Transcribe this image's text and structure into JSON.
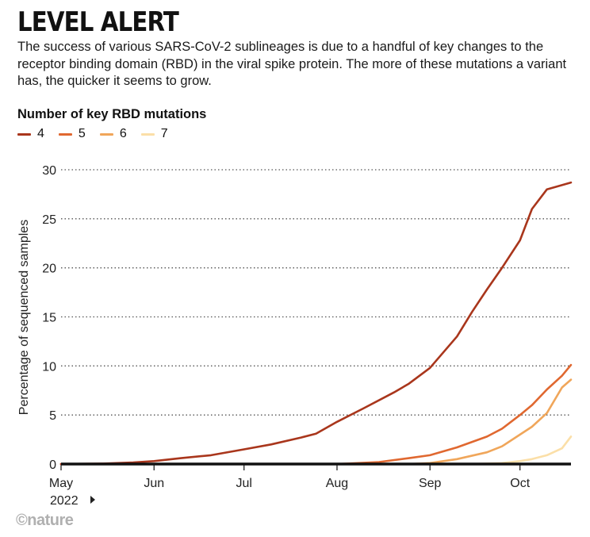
{
  "title": "LEVEL ALERT",
  "subtitle": "The success of various SARS-CoV-2 sublineages is due to a handful of key changes to the receptor binding domain (RBD) in the viral spike protein. The more of these mutations a variant has, the quicker it seems to grow.",
  "legend_title": "Number of key RBD mutations",
  "credit": "©nature",
  "year_label": "2022",
  "chart_data": {
    "type": "line",
    "ylabel": "Percentage of sequenced samples",
    "xlabel": "",
    "x_ticks": [
      "May",
      "Jun",
      "Jul",
      "Aug",
      "Sep",
      "Oct"
    ],
    "x_range": [
      "2022-05-01",
      "2022-10-18"
    ],
    "ylim": [
      0,
      30
    ],
    "y_ticks": [
      0,
      5,
      10,
      15,
      20,
      25,
      30
    ],
    "grid": "horizontal-dotted",
    "legend_position": "top-left",
    "series": [
      {
        "name": "4",
        "color": "#a9361c",
        "points": [
          [
            "2022-05-01",
            0
          ],
          [
            "2022-05-15",
            0.05
          ],
          [
            "2022-05-25",
            0.15
          ],
          [
            "2022-06-01",
            0.3
          ],
          [
            "2022-06-10",
            0.6
          ],
          [
            "2022-06-20",
            0.9
          ],
          [
            "2022-07-01",
            1.5
          ],
          [
            "2022-07-10",
            2.0
          ],
          [
            "2022-07-20",
            2.7
          ],
          [
            "2022-07-25",
            3.1
          ],
          [
            "2022-08-01",
            4.3
          ],
          [
            "2022-08-10",
            5.7
          ],
          [
            "2022-08-20",
            7.3
          ],
          [
            "2022-08-25",
            8.2
          ],
          [
            "2022-09-01",
            9.8
          ],
          [
            "2022-09-10",
            13.0
          ],
          [
            "2022-09-15",
            15.5
          ],
          [
            "2022-09-20",
            17.8
          ],
          [
            "2022-09-25",
            20.0
          ],
          [
            "2022-10-01",
            22.8
          ],
          [
            "2022-10-05",
            26.0
          ],
          [
            "2022-10-10",
            28.0
          ],
          [
            "2022-10-18",
            28.7
          ]
        ]
      },
      {
        "name": "5",
        "color": "#e06830",
        "points": [
          [
            "2022-08-01",
            0
          ],
          [
            "2022-08-15",
            0.2
          ],
          [
            "2022-08-25",
            0.6
          ],
          [
            "2022-09-01",
            0.9
          ],
          [
            "2022-09-10",
            1.7
          ],
          [
            "2022-09-20",
            2.8
          ],
          [
            "2022-09-25",
            3.6
          ],
          [
            "2022-10-01",
            5.0
          ],
          [
            "2022-10-05",
            6.0
          ],
          [
            "2022-10-10",
            7.6
          ],
          [
            "2022-10-15",
            9.0
          ],
          [
            "2022-10-18",
            10.1
          ]
        ]
      },
      {
        "name": "6",
        "color": "#f0a65a",
        "points": [
          [
            "2022-08-25",
            0
          ],
          [
            "2022-09-01",
            0.1
          ],
          [
            "2022-09-10",
            0.5
          ],
          [
            "2022-09-20",
            1.2
          ],
          [
            "2022-09-25",
            1.8
          ],
          [
            "2022-10-01",
            3.0
          ],
          [
            "2022-10-05",
            3.8
          ],
          [
            "2022-10-10",
            5.2
          ],
          [
            "2022-10-15",
            7.8
          ],
          [
            "2022-10-18",
            8.6
          ]
        ]
      },
      {
        "name": "7",
        "color": "#fbdfa8",
        "points": [
          [
            "2022-09-15",
            0
          ],
          [
            "2022-09-25",
            0.1
          ],
          [
            "2022-10-01",
            0.3
          ],
          [
            "2022-10-05",
            0.5
          ],
          [
            "2022-10-10",
            0.9
          ],
          [
            "2022-10-15",
            1.6
          ],
          [
            "2022-10-18",
            2.8
          ]
        ]
      }
    ]
  }
}
